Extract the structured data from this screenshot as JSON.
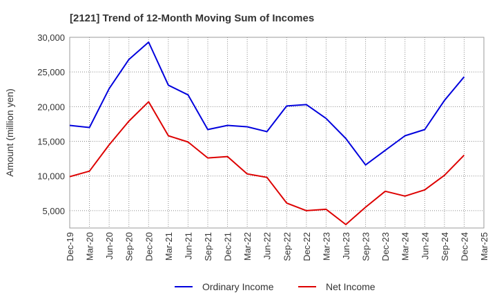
{
  "chart_data": {
    "type": "line",
    "title": "[2121]  Trend of 12-Month Moving Sum of Incomes",
    "xlabel": "",
    "ylabel": "Amount (million yen)",
    "ylim": [
      2500,
      30000
    ],
    "yticks": [
      5000,
      10000,
      15000,
      20000,
      25000,
      30000
    ],
    "ytick_labels": [
      "5,000",
      "10,000",
      "15,000",
      "20,000",
      "25,000",
      "30,000"
    ],
    "grid": true,
    "legend_position": "bottom-center",
    "categories": [
      "Dec-19",
      "Mar-20",
      "Jun-20",
      "Sep-20",
      "Dec-20",
      "Mar-21",
      "Jun-21",
      "Sep-21",
      "Dec-21",
      "Mar-22",
      "Jun-22",
      "Sep-22",
      "Dec-22",
      "Mar-23",
      "Jun-23",
      "Sep-23",
      "Dec-23",
      "Mar-24",
      "Jun-24",
      "Sep-24",
      "Dec-24",
      "Mar-25"
    ],
    "series": [
      {
        "name": "Ordinary Income",
        "color": "#0000dd",
        "values": [
          17300,
          17000,
          22600,
          26800,
          29300,
          23100,
          21700,
          16700,
          17300,
          17100,
          16400,
          20100,
          20300,
          18300,
          15400,
          11600,
          13700,
          15800,
          16700,
          20900,
          24300,
          null
        ]
      },
      {
        "name": "Net Income",
        "color": "#dd0000",
        "values": [
          9900,
          10700,
          14500,
          17900,
          20700,
          15800,
          14900,
          12600,
          12800,
          10300,
          9800,
          6100,
          5000,
          5200,
          3000,
          5500,
          7800,
          7100,
          8000,
          10100,
          13000,
          null
        ]
      }
    ]
  }
}
